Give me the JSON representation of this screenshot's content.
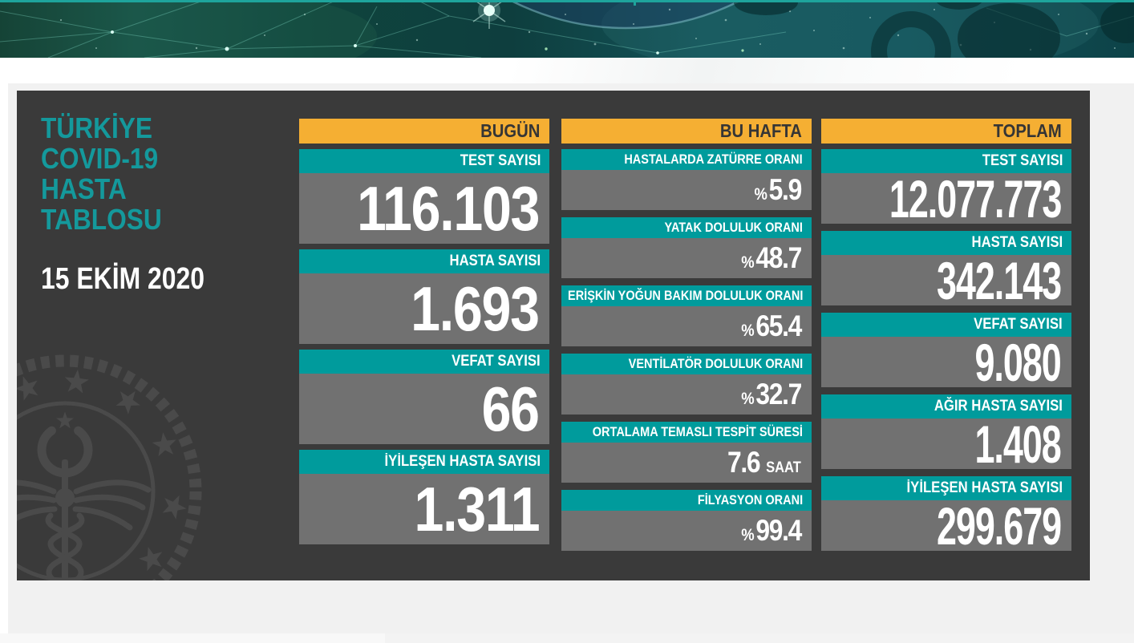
{
  "title_lines": [
    "TÜRKİYE",
    "COVID-19",
    "HASTA",
    "TABLOSU"
  ],
  "date": "15 EKİM 2020",
  "columns": [
    {
      "kind": "today",
      "header": "BUGÜN",
      "cells": [
        {
          "label": "TEST SAYISI",
          "value": "116.103"
        },
        {
          "label": "HASTA SAYISI",
          "value": "1.693"
        },
        {
          "label": "VEFAT SAYISI",
          "value": "66"
        },
        {
          "label": "İYİLEŞEN HASTA SAYISI",
          "value": "1.311"
        }
      ]
    },
    {
      "kind": "week",
      "header": "BU HAFTA",
      "cells": [
        {
          "label": "HASTALARDA ZATÜRRE ORANI",
          "prefix": "%",
          "value": "5.9"
        },
        {
          "label": "YATAK DOLULUK ORANI",
          "prefix": "%",
          "value": "48.7"
        },
        {
          "label": "ERİŞKİN YOĞUN BAKIM DOLULUK ORANI",
          "prefix": "%",
          "value": "65.4"
        },
        {
          "label": "VENTİLATÖR DOLULUK ORANI",
          "prefix": "%",
          "value": "32.7"
        },
        {
          "label": "ORTALAMA TEMASLI TESPİT SÜRESİ",
          "value": "7.6",
          "suffix": "SAAT"
        },
        {
          "label": "FİLYASYON ORANI",
          "prefix": "%",
          "value": "99.4"
        }
      ]
    },
    {
      "kind": "total",
      "header": "TOPLAM",
      "cells": [
        {
          "label": "TEST SAYISI",
          "value": "12.077.773"
        },
        {
          "label": "HASTA SAYISI",
          "value": "342.143"
        },
        {
          "label": "VEFAT SAYISI",
          "value": "9.080"
        },
        {
          "label": "AĞIR HASTA SAYISI",
          "value": "1.408"
        },
        {
          "label": "İYİLEŞEN HASTA SAYISI",
          "value": "299.679"
        }
      ]
    }
  ],
  "colors": {
    "teal_bar": "#009b9c",
    "orange_header": "#f5af33",
    "value_gray": "#717171",
    "panel_dark": "#3a3a3a",
    "title_teal": "#14999c",
    "backdrop": "#f1f1f1",
    "banner_teal_line": "#1ea49c"
  },
  "icons": {
    "watermark": "turkey-ministry-of-health-emblem"
  },
  "chart_data": [
    {
      "type": "table",
      "title": "BUGÜN",
      "rows": [
        [
          "TEST SAYISI",
          "116.103"
        ],
        [
          "HASTA SAYISI",
          "1.693"
        ],
        [
          "VEFAT SAYISI",
          "66"
        ],
        [
          "İYİLEŞEN HASTA SAYISI",
          "1.311"
        ]
      ]
    },
    {
      "type": "table",
      "title": "BU HAFTA",
      "rows": [
        [
          "HASTALARDA ZATÜRRE ORANI",
          "%5.9"
        ],
        [
          "YATAK DOLULUK ORANI",
          "%48.7"
        ],
        [
          "ERİŞKİN YOĞUN BAKIM DOLULUK ORANI",
          "%65.4"
        ],
        [
          "VENTİLATÖR DOLULUK ORANI",
          "%32.7"
        ],
        [
          "ORTALAMA TEMASLI TESPİT SÜRESİ",
          "7.6 SAAT"
        ],
        [
          "FİLYASYON ORANI",
          "%99.4"
        ]
      ]
    },
    {
      "type": "table",
      "title": "TOPLAM",
      "rows": [
        [
          "TEST SAYISI",
          "12.077.773"
        ],
        [
          "HASTA SAYISI",
          "342.143"
        ],
        [
          "VEFAT SAYISI",
          "9.080"
        ],
        [
          "AĞIR HASTA SAYISI",
          "1.408"
        ],
        [
          "İYİLEŞEN HASTA SAYISI",
          "299.679"
        ]
      ]
    }
  ]
}
